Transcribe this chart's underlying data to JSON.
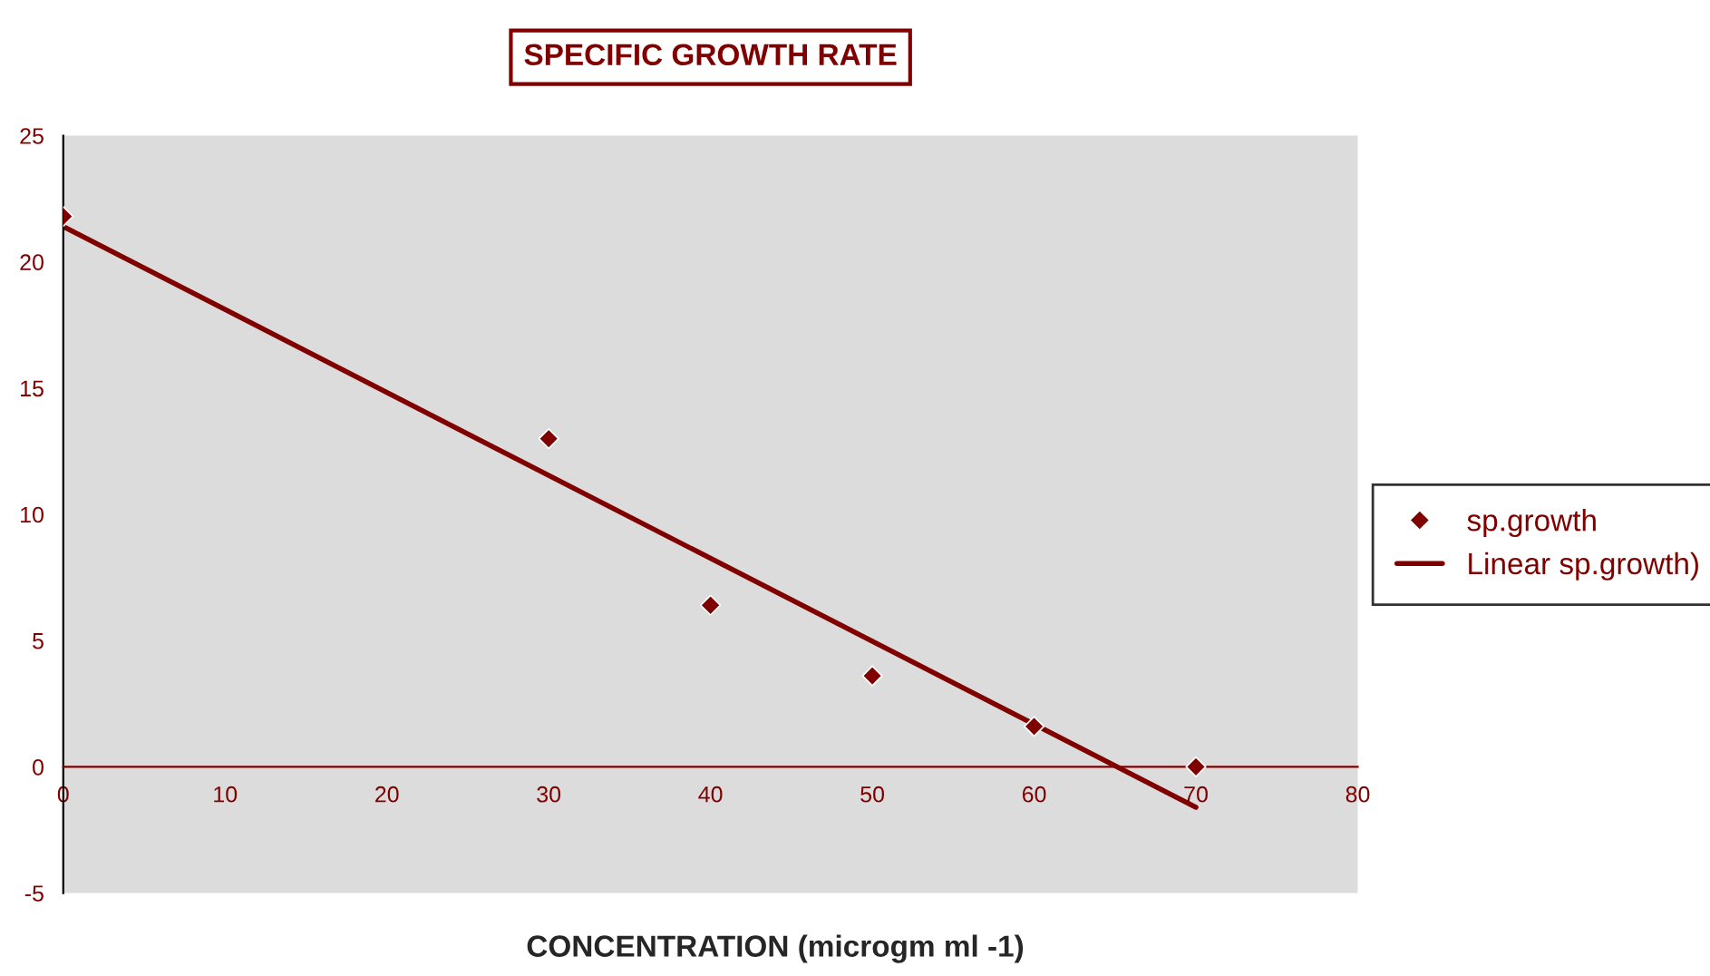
{
  "chart_data": {
    "type": "scatter",
    "title": "SPECIFIC GROWTH RATE",
    "xlabel": "CONCENTRATION (microgm ml -1)",
    "series": [
      {
        "name": "sp.growth",
        "color": "#800000",
        "marker": "diamond",
        "x": [
          0,
          30,
          40,
          50,
          60,
          70
        ],
        "values": [
          21.8,
          13,
          6.4,
          3.6,
          1.6,
          0
        ]
      },
      {
        "name": "Linear sp.growth)",
        "type": "line",
        "color": "#800000",
        "line_style": "solid",
        "x": [
          0,
          70
        ],
        "values": [
          21.4,
          -1.6
        ]
      }
    ],
    "xlim": [
      0,
      80
    ],
    "xticks": [
      0,
      10,
      20,
      30,
      40,
      50,
      60,
      70,
      80
    ],
    "ylim": [
      -5,
      25
    ],
    "yticks": [
      -5,
      0,
      5,
      10,
      15,
      20,
      25
    ],
    "legend": "right"
  }
}
